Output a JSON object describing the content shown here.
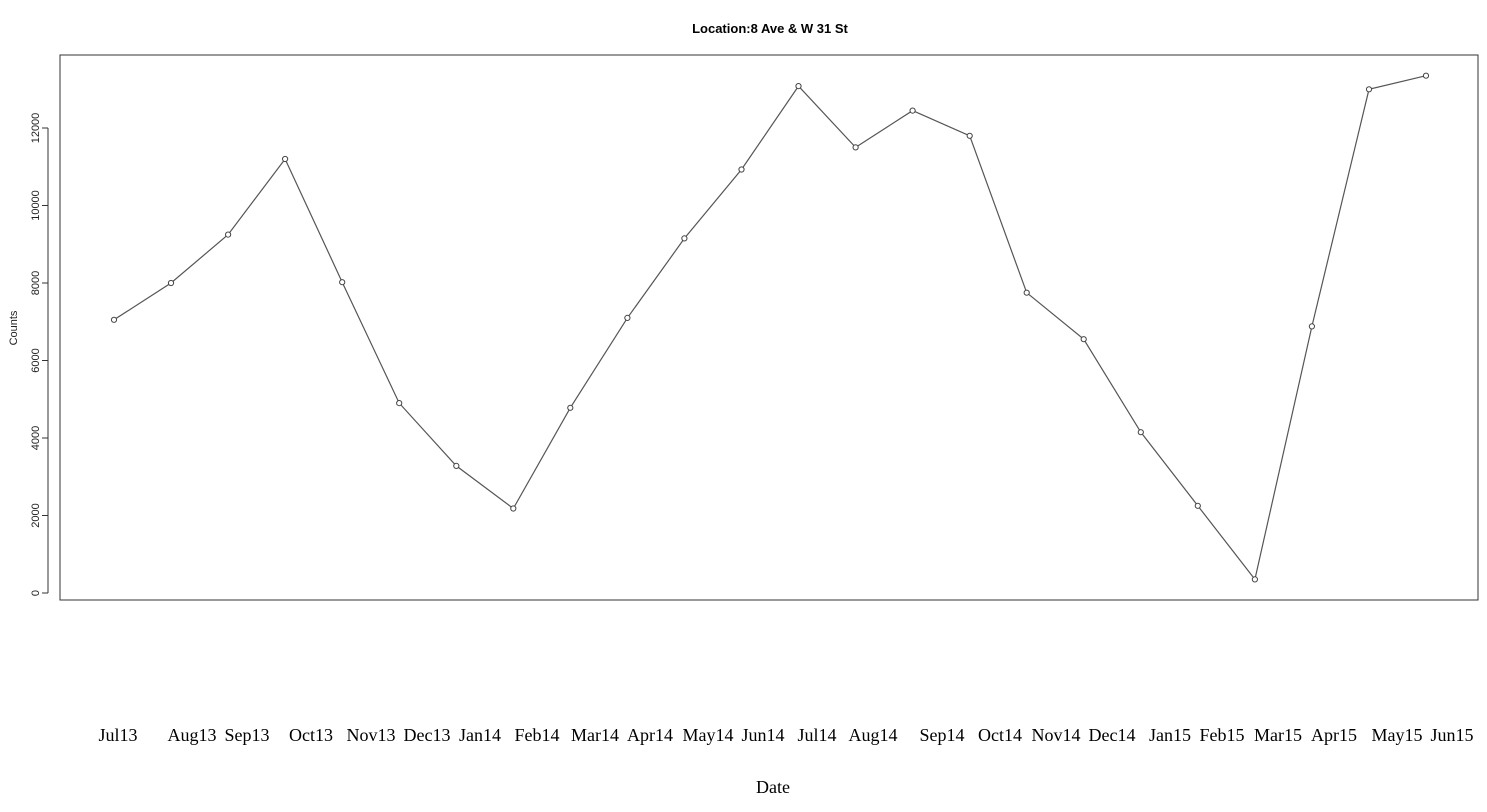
{
  "chart_data": {
    "type": "line",
    "title": "Location:8 Ave & W 31 St",
    "xlabel": "Date",
    "ylabel": "Counts",
    "ylim": [
      0,
      14000
    ],
    "yticks": [
      "0",
      "2000",
      "4000",
      "6000",
      "8000",
      "10000",
      "12000"
    ],
    "grid": false,
    "legend": "none",
    "line_color": "#555555",
    "categories": [
      "Jul13",
      "Aug13",
      "Sep13",
      "Oct13",
      "Nov13",
      "Dec13",
      "Jan14",
      "Feb14",
      "Mar14",
      "Apr14",
      "May14",
      "Jun14",
      "Jul14",
      "Aug14",
      "Sep14",
      "Oct14",
      "Nov14",
      "Dec14",
      "Jan15",
      "Feb15",
      "Mar15",
      "Apr15",
      "May15",
      "Jun15"
    ],
    "series": [
      {
        "values": [
          7050,
          8000,
          9250,
          11200,
          8020,
          4900,
          3280,
          2180,
          4780,
          7100,
          9150,
          10930,
          13080,
          11500,
          12450,
          11800,
          7750,
          6550,
          4150,
          2250,
          350,
          6880,
          13000,
          13350
        ]
      }
    ]
  }
}
